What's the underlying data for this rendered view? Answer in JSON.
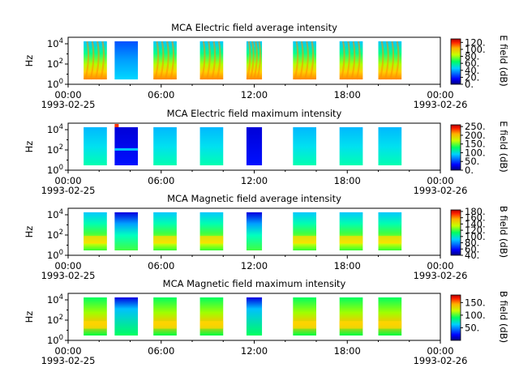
{
  "figure": {
    "time_ticks": [
      "00:00",
      "06:00",
      "12:00",
      "18:00",
      "00:00"
    ],
    "date_start": "1993-02-25",
    "date_end": "1993-02-26"
  },
  "chart_data": [
    {
      "type": "heatmap",
      "title": "MCA  Electric field average intensity",
      "ylabel": "Hz",
      "yscale": "log",
      "yticks": [
        "10^0",
        "10^2",
        "10^4"
      ],
      "xlim": [
        "1993-02-25 00:00",
        "1993-02-26 00:00"
      ],
      "colorbar": {
        "label": "E field (dB)",
        "ticks": [
          "0.",
          "20.",
          "40.",
          "60.",
          "80.",
          "100.",
          "120."
        ],
        "range": [
          0,
          130
        ]
      },
      "data_intervals_utc": [
        [
          "01:00",
          "02:30"
        ],
        [
          "03:00",
          "04:30"
        ],
        [
          "05:30",
          "07:00"
        ],
        [
          "08:30",
          "10:00"
        ],
        [
          "11:30",
          "12:30"
        ],
        [
          "14:30",
          "16:00"
        ],
        [
          "17:30",
          "19:00"
        ],
        [
          "20:00",
          "21:30"
        ]
      ]
    },
    {
      "type": "heatmap",
      "title": "MCA  Electric field maximum intensity",
      "ylabel": "Hz",
      "yscale": "log",
      "yticks": [
        "10^0",
        "10^2",
        "10^4"
      ],
      "xlim": [
        "1993-02-25 00:00",
        "1993-02-26 00:00"
      ],
      "colorbar": {
        "label": "E field (dB)",
        "ticks": [
          "0.",
          "50.",
          "100.",
          "150.",
          "200.",
          "250."
        ],
        "range": [
          0,
          260
        ]
      },
      "data_intervals_utc": [
        [
          "01:00",
          "02:30"
        ],
        [
          "03:00",
          "04:30"
        ],
        [
          "05:30",
          "07:00"
        ],
        [
          "08:30",
          "10:00"
        ],
        [
          "11:30",
          "12:30"
        ],
        [
          "14:30",
          "16:00"
        ],
        [
          "17:30",
          "19:00"
        ],
        [
          "20:00",
          "21:30"
        ]
      ]
    },
    {
      "type": "heatmap",
      "title": "MCA  Magnetic field average intensity",
      "ylabel": "Hz",
      "yscale": "log",
      "yticks": [
        "10^0",
        "10^2",
        "10^4"
      ],
      "xlim": [
        "1993-02-25 00:00",
        "1993-02-26 00:00"
      ],
      "colorbar": {
        "label": "B field (dB)",
        "ticks": [
          "40.",
          "60.",
          "80.",
          "100.",
          "120.",
          "140.",
          "160.",
          "180."
        ],
        "range": [
          40,
          185
        ]
      },
      "data_intervals_utc": [
        [
          "01:00",
          "02:30"
        ],
        [
          "03:00",
          "04:30"
        ],
        [
          "05:30",
          "07:00"
        ],
        [
          "08:30",
          "10:00"
        ],
        [
          "11:30",
          "12:30"
        ],
        [
          "14:30",
          "16:00"
        ],
        [
          "17:30",
          "19:00"
        ],
        [
          "20:00",
          "21:30"
        ]
      ]
    },
    {
      "type": "heatmap",
      "title": "MCA  Magnetic field maximum intensity",
      "ylabel": "Hz",
      "yscale": "log",
      "yticks": [
        "10^0",
        "10^2",
        "10^4"
      ],
      "xlim": [
        "1993-02-25 00:00",
        "1993-02-26 00:00"
      ],
      "colorbar": {
        "label": "B field (dB)",
        "ticks": [
          "50.",
          "100.",
          "150."
        ],
        "range": [
          0,
          180
        ]
      },
      "data_intervals_utc": [
        [
          "01:00",
          "02:30"
        ],
        [
          "03:00",
          "04:30"
        ],
        [
          "05:30",
          "07:00"
        ],
        [
          "08:30",
          "10:00"
        ],
        [
          "11:30",
          "12:30"
        ],
        [
          "14:30",
          "16:00"
        ],
        [
          "17:30",
          "19:00"
        ],
        [
          "20:00",
          "21:30"
        ]
      ]
    }
  ]
}
